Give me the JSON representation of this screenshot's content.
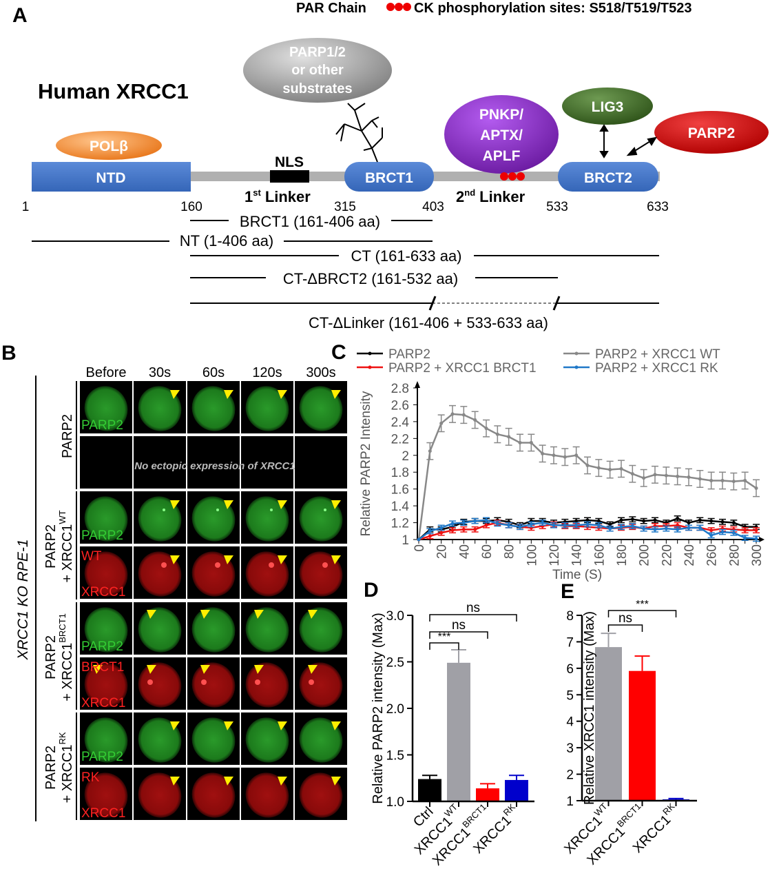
{
  "panel_labels": {
    "a": "A",
    "b": "B",
    "c": "C",
    "d": "D",
    "e": "E"
  },
  "panel_a": {
    "legend": {
      "par_chain": "PAR Chain",
      "ck_sites": "CK phosphorylation sites: S518/T519/T523"
    },
    "title": "Human XRCC1",
    "domains": {
      "ntd": "NTD",
      "brct1": "BRCT1",
      "brct2": "BRCT2",
      "nls": "NLS",
      "linker1_num": "1",
      "linker1_sup": "st",
      "linker2_num": "2",
      "linker2_sup": "nd",
      "linker_word": "Linker"
    },
    "partners": {
      "polb": "POLβ",
      "parp12_1": "PARP1/2",
      "parp12_2": "or other",
      "parp12_3": "substrates",
      "pnkp_1": "PNKP/",
      "pnkp_2": "APTX/",
      "pnkp_3": "APLF",
      "lig3": "LIG3",
      "parp2": "PARP2"
    },
    "positions": [
      "1",
      "160",
      "315",
      "403",
      "533",
      "633"
    ],
    "constructs": [
      "BRCT1 (161-406 aa)",
      "NT (1-406 aa)",
      "CT (161-633 aa)",
      "CT-ΔBRCT2 (161-532 aa)",
      "CT-ΔLinker (161-406 + 533-633 aa)"
    ],
    "colors": {
      "ntd": "#4472c4",
      "polb": "#f08a2a",
      "parp12": "#9a9a9a",
      "pnkp": "#8a2fc0",
      "lig3": "#3f6b2a",
      "parp2": "#d01010"
    }
  },
  "panel_b": {
    "side_label": "XRCC1 KO RPE-1",
    "columns": [
      "Before",
      "30s",
      "60s",
      "120s",
      "300s"
    ],
    "groups": [
      {
        "line1": "PARP2",
        "line2": "",
        "sup": ""
      },
      {
        "line1": "PARP2",
        "line2": "+ XRCC1",
        "sup": "WT"
      },
      {
        "line1": "PARP2",
        "line2": "+ XRCC1",
        "sup": "BRCT1"
      },
      {
        "line1": "PARP2",
        "line2": "+ XRCC1",
        "sup": "RK"
      }
    ],
    "row_labels": [
      [
        "PARP2",
        ""
      ],
      [
        "",
        ""
      ],
      [
        "PARP2",
        ""
      ],
      [
        "WT",
        "XRCC1"
      ],
      [
        "PARP2",
        ""
      ],
      [
        "BRCT1",
        "XRCC1"
      ],
      [
        "PARP2",
        ""
      ],
      [
        "RK",
        "XRCC1"
      ]
    ],
    "no_expression": "No ectopic expression of XRCC1"
  },
  "chart_data": [
    {
      "type": "line",
      "xlabel": "Time (S)",
      "ylabel": "Relative PARP2 Intensity",
      "xlim": [
        0,
        300
      ],
      "ylim": [
        1,
        2.8
      ],
      "x": [
        0,
        10,
        20,
        30,
        40,
        50,
        60,
        70,
        80,
        90,
        100,
        110,
        120,
        130,
        140,
        150,
        160,
        170,
        180,
        190,
        200,
        210,
        220,
        230,
        240,
        250,
        260,
        270,
        280,
        290,
        300
      ],
      "xticks": [
        "0",
        "20",
        "40",
        "60",
        "80",
        "100",
        "120",
        "140",
        "160",
        "180",
        "200",
        "220",
        "240",
        "260",
        "280",
        "300"
      ],
      "yticks": [
        "1",
        "1.2",
        "1.4",
        "1.6",
        "1.8",
        "2",
        "2.2",
        "2.4",
        "2.6",
        "2.8"
      ],
      "legend_position": "top",
      "series": [
        {
          "name": "PARP2",
          "color": "#000000",
          "values": [
            1,
            1.12,
            1.12,
            1.15,
            1.21,
            1.22,
            1.22,
            1.23,
            1.21,
            1.17,
            1.22,
            1.22,
            1.2,
            1.21,
            1.22,
            1.23,
            1.22,
            1.18,
            1.23,
            1.24,
            1.22,
            1.23,
            1.2,
            1.25,
            1.2,
            1.23,
            1.22,
            1.21,
            1.2,
            1.15,
            1.15
          ],
          "error": 0.03
        },
        {
          "name": "PARP2 + XRCC1 WT",
          "color": "#888888",
          "values": [
            1,
            2.05,
            2.38,
            2.49,
            2.48,
            2.42,
            2.32,
            2.25,
            2.22,
            2.15,
            2.15,
            2.02,
            2.0,
            1.98,
            2.0,
            1.88,
            1.85,
            1.83,
            1.84,
            1.78,
            1.73,
            1.77,
            1.76,
            1.75,
            1.74,
            1.72,
            1.7,
            1.7,
            1.69,
            1.7,
            1.61
          ],
          "error": 0.1
        },
        {
          "name": "PARP2 + XRCC1 BRCT1",
          "color": "#ee1111",
          "values": [
            1,
            1.04,
            1.08,
            1.11,
            1.12,
            1.12,
            1.17,
            1.2,
            1.17,
            1.15,
            1.14,
            1.16,
            1.18,
            1.16,
            1.16,
            1.15,
            1.14,
            1.13,
            1.14,
            1.15,
            1.13,
            1.16,
            1.16,
            1.17,
            1.14,
            1.14,
            1.11,
            1.13,
            1.12,
            1.11,
            1.11
          ],
          "error": 0.03
        },
        {
          "name": "PARP2 + XRCC1 RK",
          "color": "#1f78c8",
          "values": [
            1,
            1.1,
            1.14,
            1.19,
            1.2,
            1.22,
            1.23,
            1.19,
            1.17,
            1.15,
            1.18,
            1.2,
            1.17,
            1.17,
            1.17,
            1.18,
            1.17,
            1.13,
            1.15,
            1.16,
            1.13,
            1.12,
            1.13,
            1.12,
            1.14,
            1.14,
            1.05,
            1.09,
            1.08,
            1.02,
            1.01
          ],
          "error": 0.03
        }
      ]
    },
    {
      "type": "bar",
      "ylabel": "Relative PARP2 intensity (Max)",
      "ylim": [
        1.0,
        3.0
      ],
      "yticks": [
        "1.0",
        "1.5",
        "2.0",
        "2.5",
        "3.0"
      ],
      "categories": [
        {
          "base": "Ctrl",
          "sup": ""
        },
        {
          "base": "XRCC1",
          "sup": "WT"
        },
        {
          "base": "XRCC1",
          "sup": "BRCT1"
        },
        {
          "base": "XRCC1",
          "sup": "RK"
        }
      ],
      "values": [
        1.24,
        2.49,
        1.14,
        1.23
      ],
      "errors": [
        0.04,
        0.14,
        0.05,
        0.05
      ],
      "colors": [
        "#000000",
        "#a0a0a6",
        "#ff0000",
        "#0000cc"
      ],
      "annotations": [
        {
          "from": 0,
          "to": 1,
          "text": "***"
        },
        {
          "from": 0,
          "to": 2,
          "text": "ns"
        },
        {
          "from": 0,
          "to": 3,
          "text": "ns"
        }
      ]
    },
    {
      "type": "bar",
      "ylabel": "Relative XRCC1 intensity (Max)",
      "ylim": [
        1,
        8
      ],
      "yticks": [
        "1",
        "2",
        "3",
        "4",
        "5",
        "6",
        "7",
        "8"
      ],
      "categories": [
        {
          "base": "XRCC1",
          "sup": "WT"
        },
        {
          "base": "XRCC1",
          "sup": "BRCT1"
        },
        {
          "base": "XRCC1",
          "sup": "RK"
        }
      ],
      "values": [
        6.8,
        5.9,
        1.05
      ],
      "errors": [
        0.52,
        0.56,
        0.03
      ],
      "colors": [
        "#a0a0a6",
        "#ff0000",
        "#0000cc"
      ],
      "annotations": [
        {
          "from": 0,
          "to": 1,
          "text": "ns"
        },
        {
          "from": 0,
          "to": 2,
          "text": "***"
        }
      ]
    }
  ]
}
